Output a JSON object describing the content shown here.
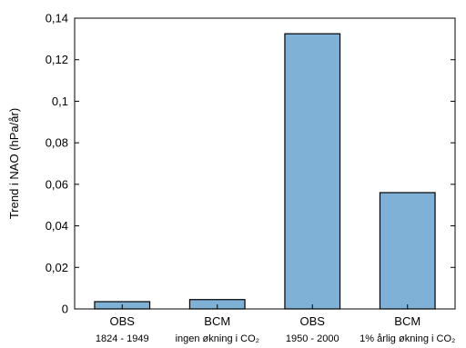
{
  "chart_data": {
    "type": "bar",
    "categories": [
      "OBS",
      "BCM",
      "OBS",
      "BCM"
    ],
    "sublabels": [
      "1824 - 1949",
      "ingen økning i CO₂",
      "1950 - 2000",
      "1% årlig økning i CO₂"
    ],
    "values": [
      0.0035,
      0.0045,
      0.1325,
      0.056
    ],
    "title": "",
    "xlabel": "",
    "ylabel": "Trend i NAO (hPa/år)",
    "ylim": [
      0,
      0.14
    ],
    "yticks": [
      0,
      0.02,
      0.04,
      0.06,
      0.08,
      0.1,
      0.12,
      0.14
    ],
    "ytick_labels": [
      "0",
      "0,02",
      "0,04",
      "0,06",
      "0,08",
      "0,1",
      "0,12",
      "0,14"
    ],
    "grid": false,
    "bar_color": "#7fb0d6",
    "bar_edge_color": "#000000"
  }
}
